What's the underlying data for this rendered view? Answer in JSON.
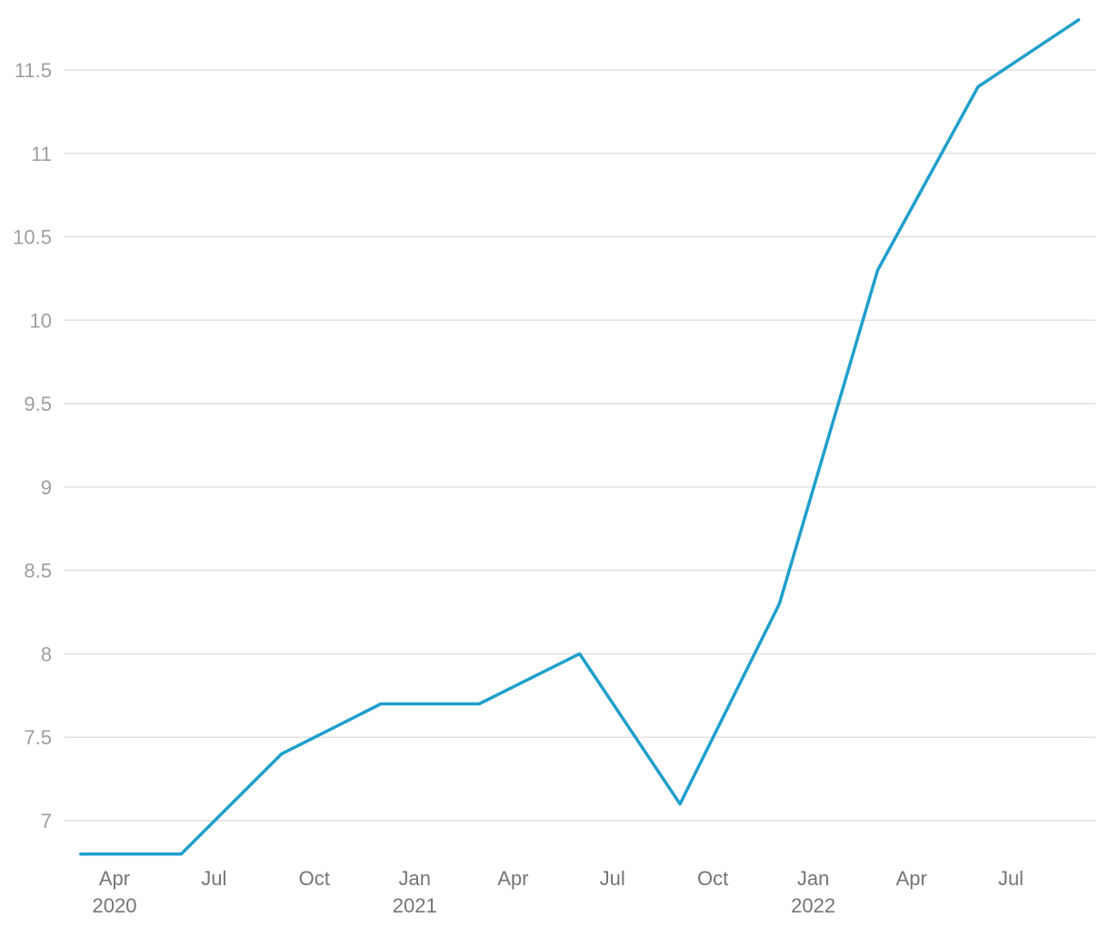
{
  "chart_data": {
    "type": "line",
    "title": "",
    "xlabel": "",
    "ylabel": "",
    "x": [
      "2020-03-01",
      "2020-06-01",
      "2020-09-01",
      "2020-12-01",
      "2021-03-01",
      "2021-06-01",
      "2021-09-01",
      "2021-12-01",
      "2022-03-01",
      "2022-06-01",
      "2022-09-01"
    ],
    "series": [
      {
        "values": [
          6.8,
          6.8,
          7.4,
          7.7,
          7.7,
          8.0,
          7.1,
          8.3,
          10.3,
          11.4,
          11.8
        ],
        "color": "#1f9fcc"
      }
    ],
    "ylim": [
      6.8,
      11.8
    ],
    "yticks": [
      7,
      7.5,
      8,
      8.5,
      9,
      9.5,
      10,
      10.5,
      11,
      11.5
    ],
    "ytick_labels": [
      "7",
      "7.5",
      "8",
      "8.5",
      "9",
      "9.5",
      "10",
      "10.5",
      "11",
      "11.5"
    ],
    "xticks": [
      {
        "date": "2020-04-01",
        "label": "Apr",
        "sublabel": "2020"
      },
      {
        "date": "2020-07-01",
        "label": "Jul",
        "sublabel": ""
      },
      {
        "date": "2020-10-01",
        "label": "Oct",
        "sublabel": ""
      },
      {
        "date": "2021-01-01",
        "label": "Jan",
        "sublabel": "2021"
      },
      {
        "date": "2021-04-01",
        "label": "Apr",
        "sublabel": ""
      },
      {
        "date": "2021-07-01",
        "label": "Jul",
        "sublabel": ""
      },
      {
        "date": "2021-10-01",
        "label": "Oct",
        "sublabel": ""
      },
      {
        "date": "2022-01-01",
        "label": "Jan",
        "sublabel": "2022"
      },
      {
        "date": "2022-04-01",
        "label": "Apr",
        "sublabel": ""
      },
      {
        "date": "2022-07-01",
        "label": "Jul",
        "sublabel": ""
      }
    ],
    "grid": true,
    "legend": "none"
  }
}
